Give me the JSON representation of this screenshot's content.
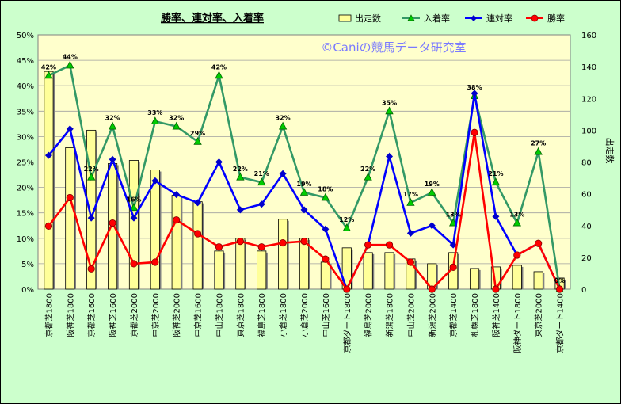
{
  "chart_data": {
    "type": "bar",
    "title": "勝率、連対率、入着率",
    "watermark": "©Caniの競馬データ研究室",
    "categories": [
      "京都芝1800",
      "阪神芝1800",
      "京都芝1600",
      "阪神芝1600",
      "京都芝2000",
      "中京芝2000",
      "阪神芝2000",
      "中京芝1600",
      "中山芝1800",
      "東京芝1800",
      "福島芝1800",
      "小倉芝1800",
      "小倉芝2000",
      "中山芝1600",
      "京都ダート1800",
      "福島芝2000",
      "新潟芝1800",
      "中山芝2000",
      "新潟芝2000",
      "京都芝1400",
      "札幌芝1800",
      "阪神芝1400",
      "阪神ダート1800",
      "東京芝2000",
      "京都ダート1400"
    ],
    "left_axis": {
      "ticks": [
        "0%",
        "5%",
        "10%",
        "15%",
        "20%",
        "25%",
        "30%",
        "35%",
        "40%",
        "45%",
        "50%"
      ],
      "ylim": [
        0,
        50
      ]
    },
    "right_axis": {
      "label": "出走数",
      "ticks": [
        "0",
        "20",
        "40",
        "60",
        "80",
        "100",
        "120",
        "140",
        "160"
      ],
      "ylim": [
        0,
        160
      ]
    },
    "series": [
      {
        "name": "出走数",
        "type": "bar",
        "axis": "right",
        "color": "#ffff99",
        "values": [
          137,
          89,
          100,
          79,
          81,
          75,
          59,
          55,
          24,
          32,
          24,
          44,
          32,
          17,
          26,
          23,
          23,
          19,
          16,
          23,
          13,
          14,
          15,
          11,
          7
        ]
      },
      {
        "name": "入着率",
        "type": "line",
        "axis": "left",
        "color": "#339966",
        "values": [
          42,
          44,
          22,
          32,
          16,
          33,
          32,
          29,
          42,
          22,
          21,
          32,
          19,
          18,
          12,
          22,
          35,
          17,
          19,
          13,
          38,
          21,
          13,
          27,
          0
        ],
        "labels": [
          "42%",
          "44%",
          "22%",
          "32%",
          "16%",
          "33%",
          "32%",
          "29%",
          "42%",
          "22%",
          "21%",
          "32%",
          "19%",
          "18%",
          "12%",
          "22%",
          "35%",
          "17%",
          "19%",
          "13%",
          "38%",
          "21%",
          "13%",
          "27%",
          "0%"
        ]
      },
      {
        "name": "連対率",
        "type": "line",
        "axis": "left",
        "color": "#0000ff",
        "values": [
          26.3,
          31.5,
          14,
          25.5,
          14,
          21.3,
          18.6,
          17,
          25,
          15.6,
          16.7,
          22.7,
          15.6,
          11.8,
          0,
          8.7,
          26.1,
          11,
          12.5,
          8.7,
          38.5,
          14.3,
          6.7,
          9,
          0
        ]
      },
      {
        "name": "勝率",
        "type": "line",
        "axis": "left",
        "color": "#ff0000",
        "values": [
          12.4,
          18,
          4,
          13,
          5,
          5.3,
          13.6,
          10.9,
          8.3,
          9.4,
          8.3,
          9.1,
          9.4,
          5.9,
          0,
          8.7,
          8.7,
          5.3,
          0,
          4.3,
          30.8,
          0,
          6.7,
          9,
          0
        ]
      }
    ],
    "legend_position": "top-right",
    "grid": true
  }
}
